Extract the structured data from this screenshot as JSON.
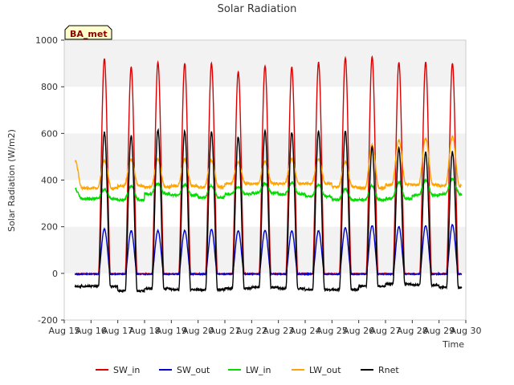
{
  "chart_data": {
    "type": "line",
    "title": "Solar Radiation",
    "xlabel": "Time",
    "ylabel": "Solar Radiation (W/m2)",
    "badge": "BA_met",
    "ylim": [
      -200,
      1000
    ],
    "xlim": [
      15,
      30
    ],
    "yticks": [
      -200,
      0,
      200,
      400,
      600,
      800,
      1000
    ],
    "xticks": [
      {
        "x": 15,
        "label": "Aug 15"
      },
      {
        "x": 16,
        "label": "Aug 16"
      },
      {
        "x": 17,
        "label": "Aug 17"
      },
      {
        "x": 18,
        "label": "Aug 18"
      },
      {
        "x": 19,
        "label": "Aug 19"
      },
      {
        "x": 20,
        "label": "Aug 20"
      },
      {
        "x": 21,
        "label": "Aug 21"
      },
      {
        "x": 22,
        "label": "Aug 22"
      },
      {
        "x": 23,
        "label": "Aug 23"
      },
      {
        "x": 24,
        "label": "Aug 24"
      },
      {
        "x": 25,
        "label": "Aug 25"
      },
      {
        "x": 26,
        "label": "Aug 26"
      },
      {
        "x": 27,
        "label": "Aug 27"
      },
      {
        "x": 28,
        "label": "Aug 28"
      },
      {
        "x": 29,
        "label": "Aug 29"
      },
      {
        "x": 30,
        "label": "Aug 30"
      }
    ],
    "grid": "horizontal bands",
    "legend_position": "bottom",
    "days": [
      16,
      17,
      18,
      19,
      20,
      21,
      22,
      23,
      24,
      25,
      26,
      27,
      28,
      29
    ],
    "series": [
      {
        "name": "SW_in",
        "color": "#dd0000",
        "night": [
          -2,
          -2,
          -2,
          -2,
          -2,
          -2,
          -2,
          -2,
          -2,
          -2,
          -2,
          -2,
          -2,
          -2
        ],
        "peak": [
          920,
          885,
          905,
          900,
          900,
          865,
          890,
          885,
          905,
          925,
          930,
          905,
          905,
          900
        ]
      },
      {
        "name": "SW_out",
        "color": "#0000cc",
        "night": [
          -3,
          -3,
          -3,
          -3,
          -3,
          -3,
          -3,
          -3,
          -3,
          -3,
          -3,
          -3,
          -3,
          -3
        ],
        "peak": [
          190,
          182,
          183,
          183,
          188,
          183,
          185,
          182,
          183,
          195,
          205,
          200,
          205,
          208
        ]
      },
      {
        "name": "LW_in",
        "color": "#00dd00",
        "night": [
          320,
          315,
          340,
          335,
          325,
          340,
          345,
          340,
          330,
          315,
          315,
          320,
          335,
          340
        ],
        "peak": [
          360,
          375,
          385,
          380,
          375,
          370,
          385,
          390,
          380,
          360,
          375,
          390,
          400,
          405
        ]
      },
      {
        "name": "LW_out",
        "color": "#ffa500",
        "night": [
          365,
          375,
          370,
          375,
          370,
          385,
          385,
          385,
          385,
          370,
          365,
          380,
          380,
          375
        ],
        "peak": [
          485,
          490,
          490,
          490,
          485,
          475,
          480,
          490,
          490,
          480,
          550,
          570,
          580,
          585
        ]
      },
      {
        "name": "Rnet",
        "color": "#000000",
        "night": [
          -55,
          -75,
          -65,
          -70,
          -70,
          -65,
          -60,
          -65,
          -70,
          -70,
          -55,
          -45,
          -50,
          -60
        ],
        "peak": [
          605,
          590,
          615,
          610,
          605,
          585,
          610,
          605,
          610,
          610,
          540,
          535,
          520,
          520
        ]
      }
    ]
  }
}
